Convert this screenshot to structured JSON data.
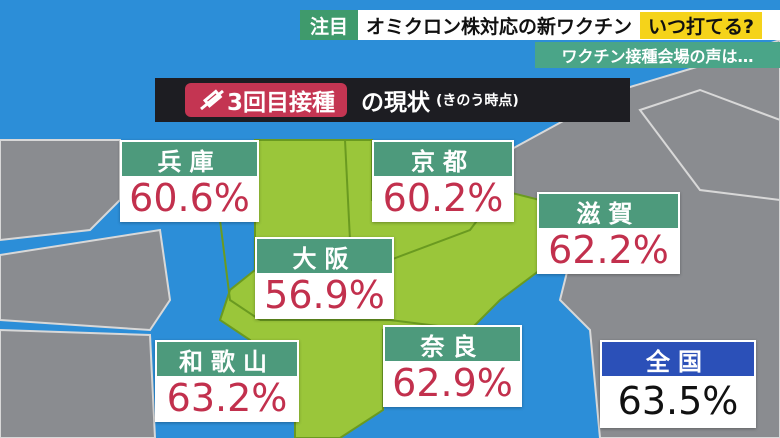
{
  "header": {
    "tag": "注目",
    "headline": "オミクロン株対応の新ワクチン",
    "highlight": "いつ打てる?",
    "subheadline": "ワクチン接種会場の声は…"
  },
  "title": {
    "main": "3回目接種",
    "rest": "の現状",
    "note": "(きのう時点)"
  },
  "regions": [
    {
      "name": "兵庫",
      "value": "60.6%"
    },
    {
      "name": "京都",
      "value": "60.2%"
    },
    {
      "name": "滋賀",
      "value": "62.2%"
    },
    {
      "name": "大阪",
      "value": "56.9%"
    },
    {
      "name": "和歌山",
      "value": "63.2%"
    },
    {
      "name": "奈良",
      "value": "62.9%"
    },
    {
      "name": "全国",
      "value": "63.5%"
    }
  ]
}
